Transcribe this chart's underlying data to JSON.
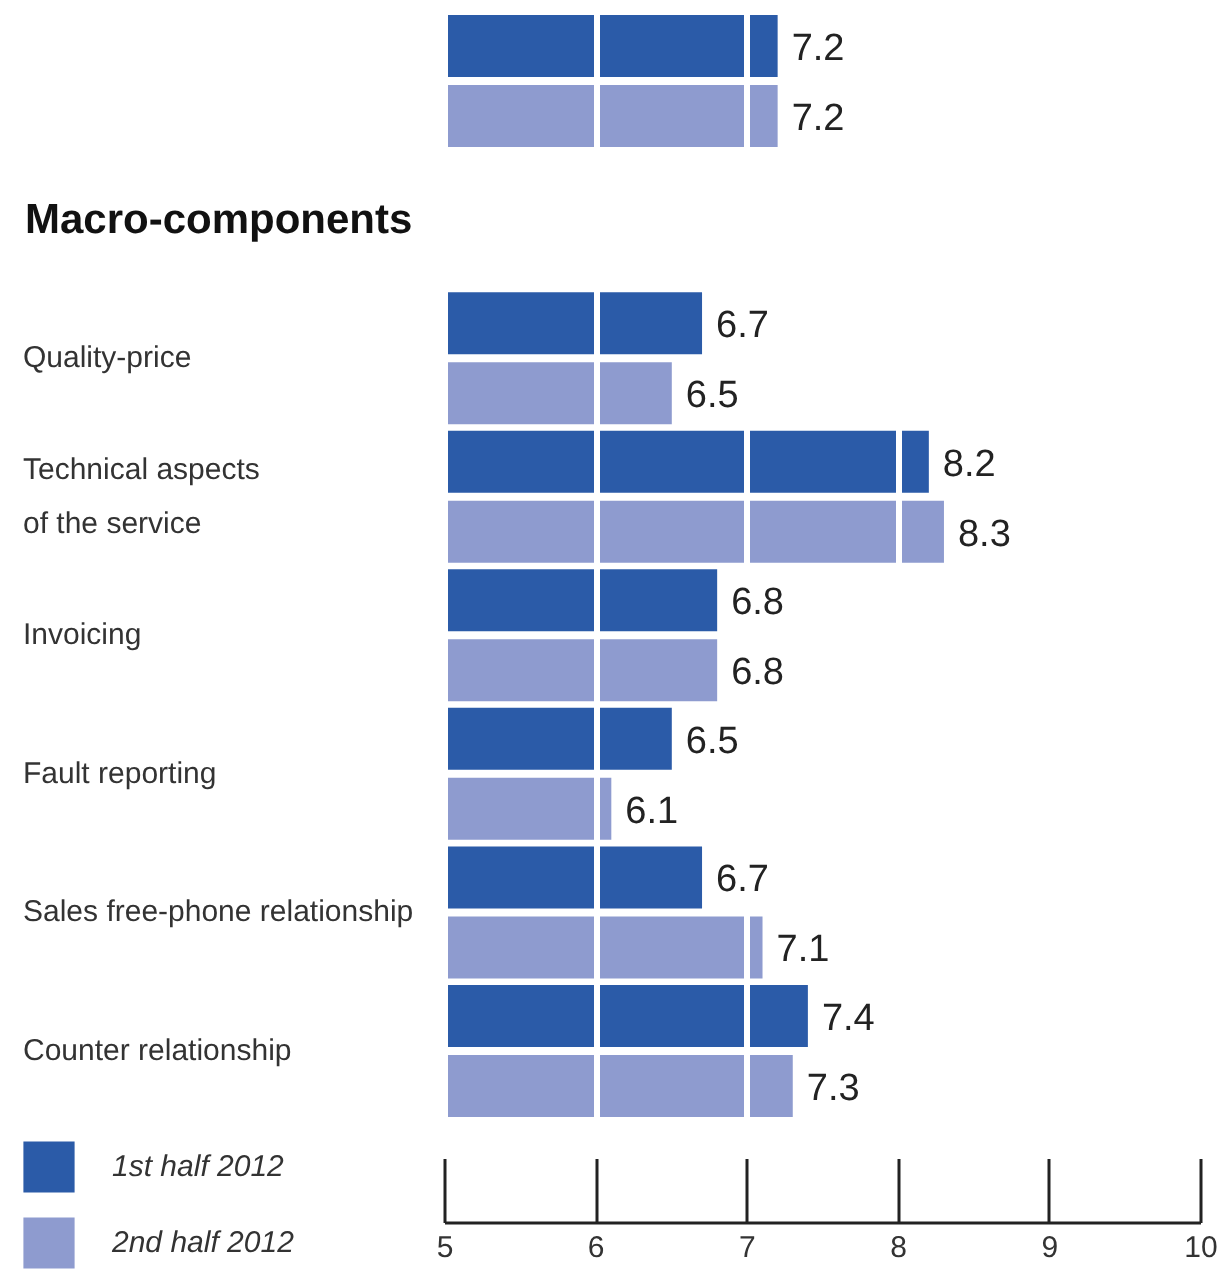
{
  "chart_data": {
    "type": "bar",
    "orientation": "horizontal",
    "categories": [
      null,
      "Macro-components",
      "Quality-price",
      "Technical aspects\nof the service",
      "Invoicing",
      "Fault reporting",
      "Sales free-phone relationship",
      "Counter relationship"
    ],
    "series": [
      {
        "name": "1st half 2012",
        "color": "#2b5ba8",
        "values": [
          7.2,
          null,
          6.7,
          8.2,
          6.8,
          6.5,
          6.7,
          7.4
        ]
      },
      {
        "name": "2nd half 2012",
        "color": "#8e9bcf",
        "values": [
          7.2,
          null,
          6.5,
          8.3,
          6.8,
          6.1,
          7.1,
          7.3
        ]
      }
    ],
    "xlim": [
      5,
      10
    ],
    "xticks": [
      5,
      6,
      7,
      8,
      9,
      10
    ],
    "grid": "x",
    "legend": "bottom left",
    "data_labels": true
  }
}
